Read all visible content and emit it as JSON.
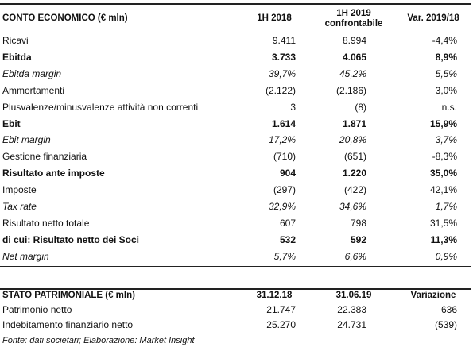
{
  "income_table": {
    "header": [
      "CONTO ECONOMICO (€ mln)",
      "1H 2018",
      "1H 2019\nconfrontabile",
      "Var. 2019/18"
    ],
    "rows": [
      [
        "Ricavi",
        "9.411",
        "8.994",
        "-4,4%"
      ],
      [
        "Ebitda",
        "3.733",
        "4.065",
        "8,9%"
      ],
      [
        "Ebitda margin",
        "39,7%",
        "45,2%",
        "5,5%"
      ],
      [
        "Ammortamenti",
        "(2.122)",
        "(2.186)",
        "3,0%"
      ],
      [
        "Plusvalenze/minusvalenze attività non correnti",
        "3",
        "(8)",
        "n.s."
      ],
      [
        "Ebit",
        "1.614",
        "1.871",
        "15,9%"
      ],
      [
        "Ebit margin",
        "17,2%",
        "20,8%",
        "3,7%"
      ],
      [
        "Gestione finanziaria",
        "(710)",
        "(651)",
        "-8,3%"
      ],
      [
        "Risultato ante imposte",
        "904",
        "1.220",
        "35,0%"
      ],
      [
        "Imposte",
        "(297)",
        "(422)",
        "42,1%"
      ],
      [
        "Tax rate",
        "32,9%",
        "34,6%",
        "1,7%"
      ],
      [
        "Risultato netto totale",
        "607",
        "798",
        "31,5%"
      ],
      [
        "di cui: Risultato netto dei Soci",
        "532",
        "592",
        "11,3%"
      ],
      [
        "Net margin",
        "5,7%",
        "6,6%",
        "0,9%"
      ]
    ]
  },
  "balance_table": {
    "header": [
      "STATO PATRIMONIALE (€ mln)",
      "31.12.18",
      "31.06.19",
      "Variazione"
    ],
    "rows": [
      [
        "Patrimonio netto",
        "21.747",
        "22.383",
        "636"
      ],
      [
        "Indebitamento finanziario netto",
        "25.270",
        "24.731",
        "(539)"
      ]
    ]
  },
  "footnote": "Fonte: dati societari; Elaborazione: Market Insight"
}
